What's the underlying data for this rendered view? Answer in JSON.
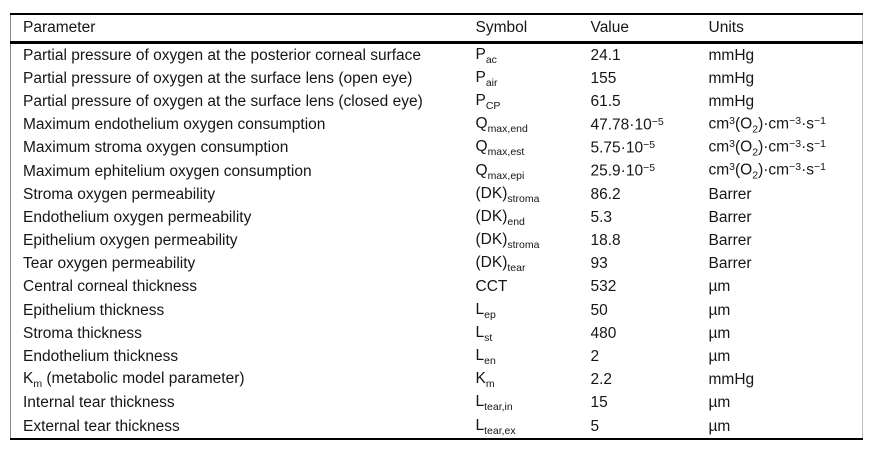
{
  "colors": {
    "background": "#ffffff",
    "text": "#161616",
    "rule": "#000000"
  },
  "table": {
    "columns": [
      "Parameter",
      "Symbol",
      "Value",
      "Units"
    ],
    "rows": [
      {
        "parameter": "Partial pressure of oxygen at the posterior corneal surface",
        "symbol": "P~ac~",
        "value": "24.1",
        "units": "mmHg"
      },
      {
        "parameter": "Partial pressure of oxygen at the surface lens (open eye)",
        "symbol": "P~air~",
        "value": "155",
        "units": "mmHg"
      },
      {
        "parameter": "Partial pressure of oxygen at the surface lens (closed eye)",
        "symbol": "P~CP~",
        "value": "61.5",
        "units": "mmHg"
      },
      {
        "parameter": "Maximum endothelium oxygen consumption",
        "symbol": "Q~max,end~",
        "value": "47.78·10^−5^",
        "units": "cm^3^(O~2~)·cm^−3^·s^−1^"
      },
      {
        "parameter": "Maximum stroma oxygen consumption",
        "symbol": "Q~max,est~",
        "value": "5.75·10^−5^",
        "units": "cm^3^(O~2~)·cm^−3^·s^−1^"
      },
      {
        "parameter": "Maximum ephitelium oxygen consumption",
        "symbol": "Q~max,epi~",
        "value": "25.9·10^−5^",
        "units": "cm^3^(O~2~)·cm^−3^·s^−1^"
      },
      {
        "parameter": "Stroma oxygen permeability",
        "symbol": "(DK)~stroma~",
        "value": "86.2",
        "units": "Barrer"
      },
      {
        "parameter": "Endothelium oxygen permeability",
        "symbol": "(DK)~end~",
        "value": "5.3",
        "units": "Barrer"
      },
      {
        "parameter": "Epithelium oxygen permeability",
        "symbol": "(DK)~stroma~",
        "value": "18.8",
        "units": "Barrer"
      },
      {
        "parameter": "Tear oxygen permeability",
        "symbol": "(DK)~tear~",
        "value": "93",
        "units": "Barrer"
      },
      {
        "parameter": "Central corneal thickness",
        "symbol": "CCT",
        "value": "532",
        "units": "µm"
      },
      {
        "parameter": "Epithelium thickness",
        "symbol": "L~ep~",
        "value": "50",
        "units": "µm"
      },
      {
        "parameter": "Stroma thickness",
        "symbol": "L~st~",
        "value": "480",
        "units": "µm"
      },
      {
        "parameter": "Endothelium thickness",
        "symbol": "L~en~",
        "value": "2",
        "units": "µm"
      },
      {
        "parameter": "K~m~ (metabolic model parameter)",
        "symbol": "K~m~",
        "value": "2.2",
        "units": "mmHg"
      },
      {
        "parameter": "Internal tear thickness",
        "symbol": "L~tear,in~",
        "value": "15",
        "units": "µm"
      },
      {
        "parameter": "External tear thickness",
        "symbol": "L~tear,ex~",
        "value": "5",
        "units": "µm"
      }
    ]
  }
}
